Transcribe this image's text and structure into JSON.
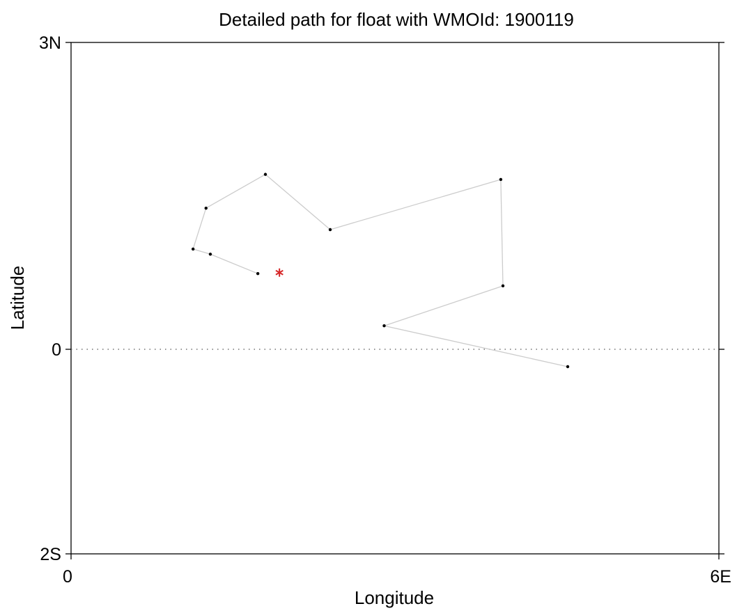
{
  "chart_data": {
    "type": "line",
    "title": "Detailed path for float with WMOId: 1900119",
    "xlabel": "Longitude",
    "ylabel": "Latitude",
    "xlim": [
      0,
      6
    ],
    "ylim": [
      -2,
      3
    ],
    "x_ticks": [
      {
        "value": 0,
        "label": "0"
      },
      {
        "value": 6,
        "label": "6E"
      }
    ],
    "y_ticks": [
      {
        "value": 3,
        "label": "3N"
      },
      {
        "value": 0,
        "label": "0"
      },
      {
        "value": -2,
        "label": "2S"
      }
    ],
    "reference_line": {
      "y": 0,
      "style": "dotted"
    },
    "grid": false,
    "series": [
      {
        "x": [
          4.6,
          2.9,
          4.0,
          3.98,
          2.4,
          1.8,
          1.25,
          1.13,
          1.29,
          1.73
        ],
        "y": [
          -0.17,
          0.23,
          0.62,
          1.66,
          1.17,
          1.71,
          1.38,
          0.98,
          0.93,
          0.74
        ],
        "line_color": "#cccccc",
        "marker_color": "#000000"
      }
    ],
    "latest_position": {
      "x": 1.93,
      "y": 0.75,
      "marker": "asterisk",
      "color": "#d62728"
    }
  }
}
